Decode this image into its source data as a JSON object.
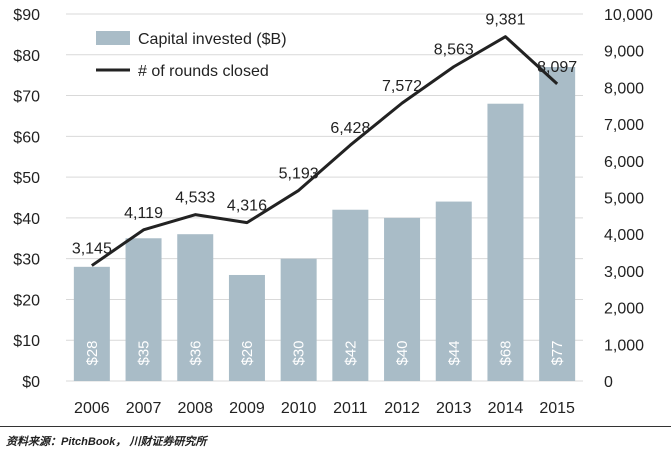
{
  "chart_data": {
    "type": "bar",
    "categories": [
      "2006",
      "2007",
      "2008",
      "2009",
      "2010",
      "2011",
      "2012",
      "2013",
      "2014",
      "2015"
    ],
    "series": [
      {
        "name": "Capital invested ($B)",
        "type": "bar",
        "axis": "left",
        "values": [
          28,
          35,
          36,
          26,
          30,
          42,
          40,
          44,
          68,
          77
        ],
        "labels": [
          "$28",
          "$35",
          "$36",
          "$26",
          "$30",
          "$42",
          "$40",
          "$44",
          "$68",
          "$77"
        ],
        "color": "#a9bcc7"
      },
      {
        "name": "# of rounds closed",
        "type": "line",
        "axis": "right",
        "values": [
          3145,
          4119,
          4533,
          4316,
          5193,
          6428,
          7572,
          8563,
          9381,
          8097
        ],
        "labels": [
          "3,145",
          "4,119",
          "4,533",
          "4,316",
          "5,193",
          "6,428",
          "7,572",
          "8,563",
          "9,381",
          "8,097"
        ],
        "color": "#222222"
      }
    ],
    "y_left": {
      "ylim": [
        0,
        90
      ],
      "ticks": [
        "$0",
        "$10",
        "$20",
        "$30",
        "$40",
        "$50",
        "$60",
        "$70",
        "$80",
        "$90"
      ]
    },
    "y_right": {
      "ylim": [
        0,
        10000
      ],
      "ticks": [
        "0",
        "1,000",
        "2,000",
        "3,000",
        "4,000",
        "5,000",
        "6,000",
        "7,000",
        "8,000",
        "9,000",
        "10,000"
      ]
    },
    "legend": {
      "position": "top-left"
    },
    "title": "",
    "xlabel": "",
    "ylabel": ""
  },
  "source_note": "资料来源：PitchBook， 川财证券研究所"
}
